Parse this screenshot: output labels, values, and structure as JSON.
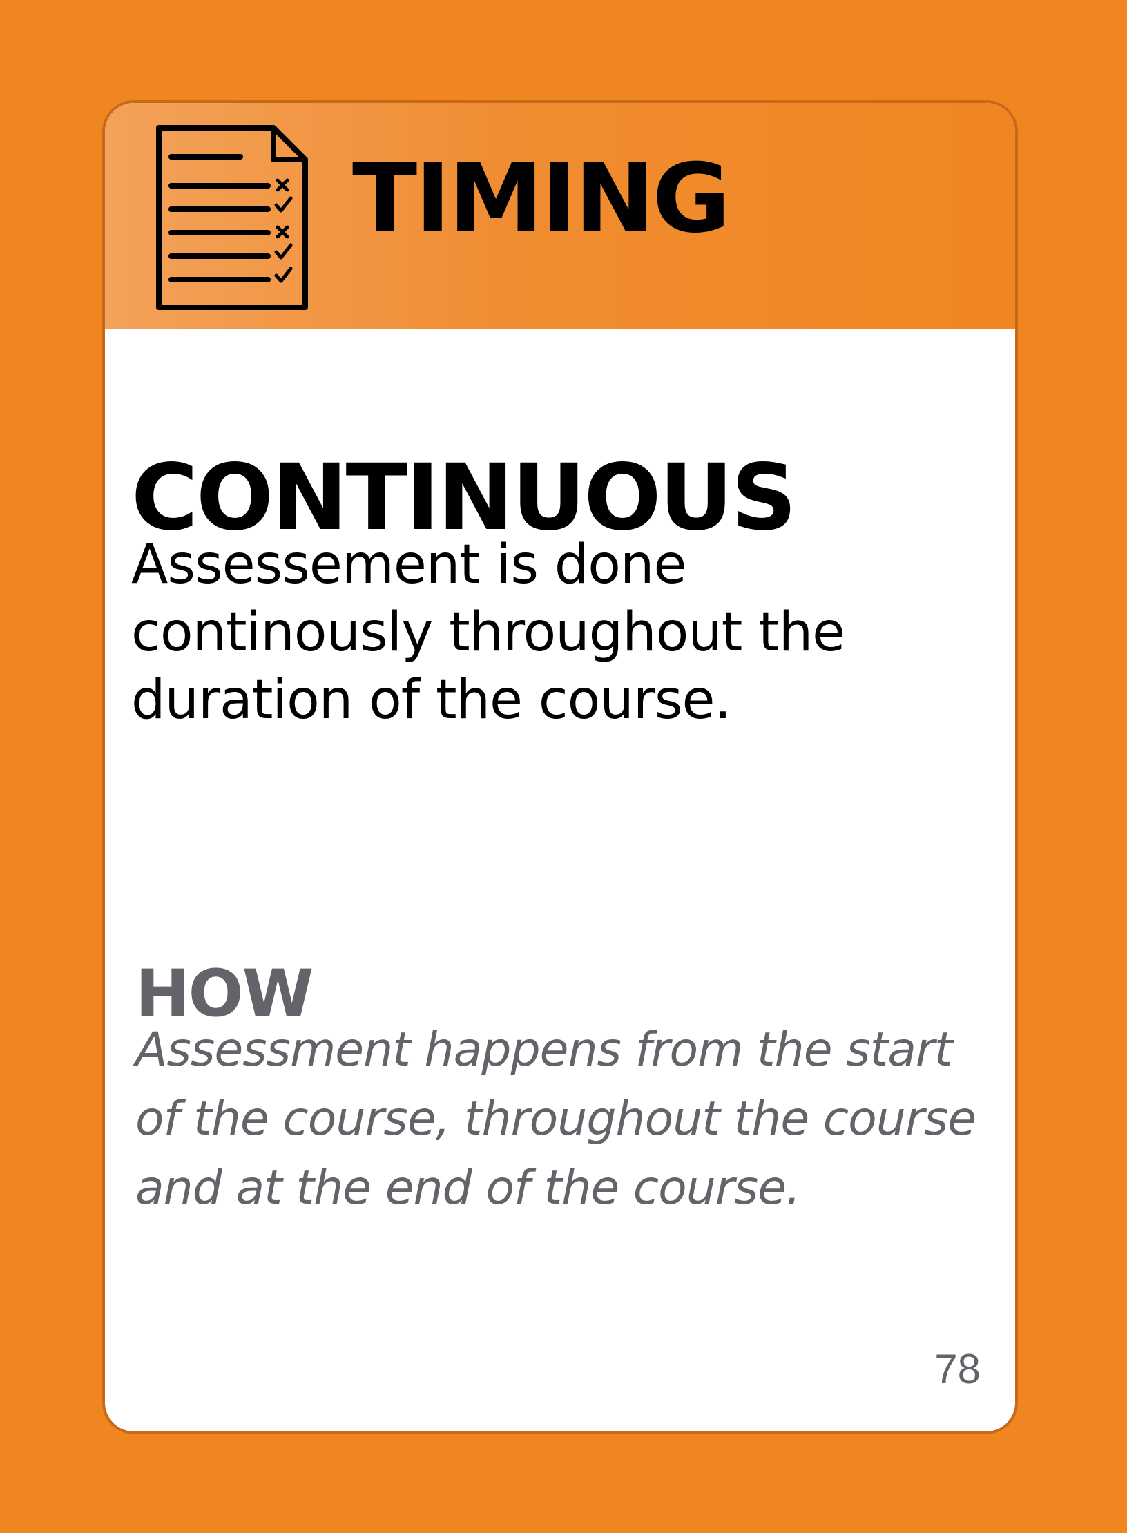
{
  "card": {
    "category_icon": "checklist-document-icon",
    "category": "TIMING",
    "title": "CONTINUOUS",
    "description": "Assessement is done continously throughout the duration of the course.",
    "how_heading": "HOW",
    "how_text": "Assessment happens from the start of the course, throughout the course and at the end of the course.",
    "page_number": "78"
  },
  "colors": {
    "background": "#ef8620",
    "header_light": "#f3a25a",
    "card_background": "#ffffff",
    "title_text": "#000000",
    "secondary_text": "#626469"
  }
}
